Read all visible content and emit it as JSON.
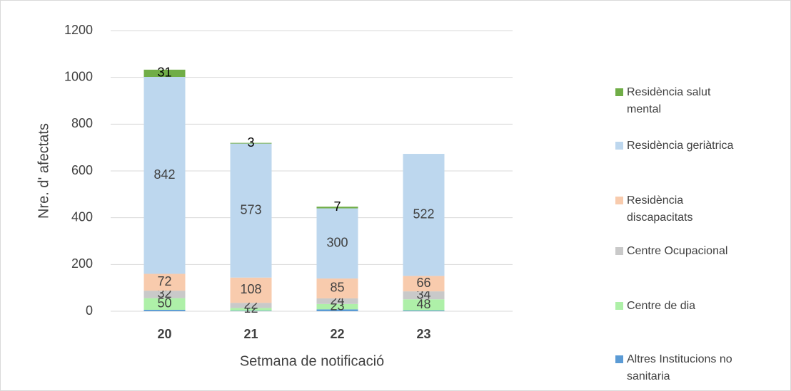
{
  "chart_data": {
    "type": "stacked_bar",
    "categories": [
      "20",
      "21",
      "22",
      "23"
    ],
    "x_label": "Setmana de notificació",
    "y_label": "Nre. d' afectats",
    "ylim": [
      0,
      1200
    ],
    "yticks": [
      0,
      200,
      400,
      600,
      800,
      1000,
      1200
    ],
    "grid": true,
    "series": [
      {
        "name": "Altres  Institucions no sanitaria",
        "color": "#5b9bd5",
        "values": [
          6,
          2,
          8,
          3
        ],
        "value_labels": [
          null,
          null,
          null,
          null
        ]
      },
      {
        "name": "Centre de dia",
        "color": "#aef0a8",
        "values": [
          50,
          12,
          23,
          48
        ]
      },
      {
        "name": "Centre Ocupacional",
        "color": "#c9c9c9",
        "values": [
          32,
          22,
          24,
          34
        ]
      },
      {
        "name": "Residència discapacitats",
        "color": "#f8cbad",
        "values": [
          72,
          108,
          85,
          66
        ]
      },
      {
        "name": "Residència geriàtrica",
        "color": "#bdd7ee",
        "values": [
          842,
          573,
          300,
          522
        ]
      },
      {
        "name": "Residència salut mental",
        "color": "#70ad47",
        "values": [
          31,
          3,
          7,
          null
        ]
      }
    ]
  }
}
